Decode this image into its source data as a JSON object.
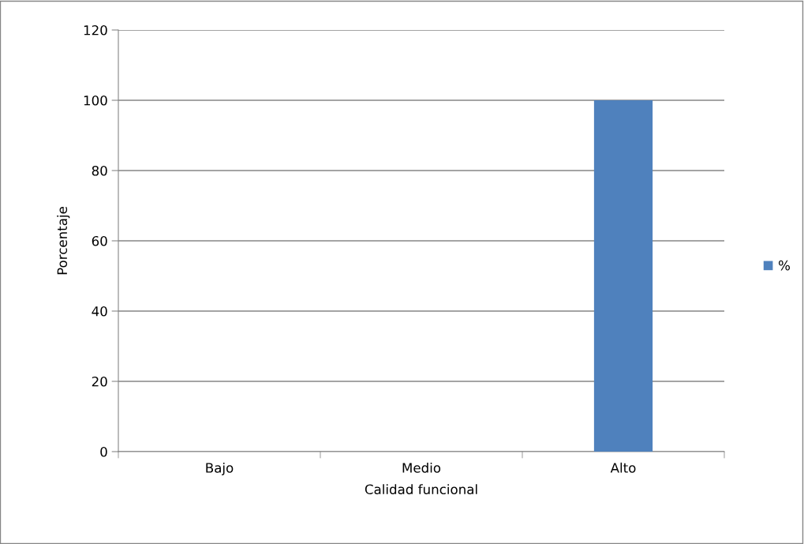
{
  "chart_data": {
    "type": "bar",
    "xlabel": "Calidad funcional",
    "ylabel": "Porcentaje",
    "categories": [
      "Bajo",
      "Medio",
      "Alto"
    ],
    "series": [
      {
        "name": "%",
        "color": "#4f81bd",
        "values": [
          0,
          0,
          100
        ]
      }
    ],
    "ylim": [
      0,
      120
    ],
    "yticks": [
      0,
      20,
      40,
      60,
      80,
      100,
      120
    ],
    "grid": "y",
    "legend": "right"
  }
}
